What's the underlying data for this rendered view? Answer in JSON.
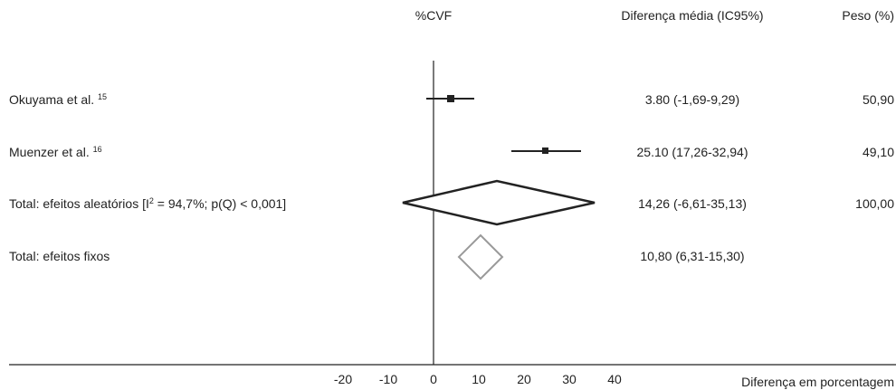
{
  "chart_data": {
    "type": "forest",
    "title": "",
    "columns": {
      "plot_header": "%CVF",
      "effect_header": "Diferença média (IC95%)",
      "weight_header": "Peso (%)"
    },
    "xlabel": "Diferença em porcentagem",
    "xlim": [
      -20,
      40
    ],
    "xticks": [
      "-20",
      "-10",
      "0",
      "10",
      "20",
      "30",
      "40"
    ],
    "null_value": 0,
    "rows": [
      {
        "label": "Okuyama et al.",
        "ref": "15",
        "mark": "square",
        "estimate": 3.8,
        "lower": -1.69,
        "upper": 9.29,
        "effect_text": "3.80 (-1,69-9,29)",
        "weight_text": "50,90"
      },
      {
        "label": "Muenzer et al.",
        "ref": "16",
        "mark": "square",
        "estimate": 25.1,
        "lower": 17.26,
        "upper": 32.94,
        "effect_text": "25.10 (17,26-32,94)",
        "weight_text": "49,10"
      },
      {
        "label_prefix": "Total: efeitos aleatórios [I",
        "label_sup": "2",
        "label_suffix": " = 94,7%; p(Q) < 0,001]",
        "mark": "diamond",
        "estimate": 14.26,
        "lower": -6.61,
        "upper": 35.13,
        "effect_text": "14,26 (-6,61-35,13)",
        "weight_text": "100,00"
      },
      {
        "label": "Total: efeitos fixos",
        "mark": "diamond-hollow",
        "estimate": 10.8,
        "lower": 6.31,
        "upper": 15.3,
        "effect_text": "10,80 (6,31-15,30)",
        "weight_text": ""
      }
    ],
    "colors": {
      "ink": "#222222",
      "fixed_diamond": "#999999"
    }
  }
}
